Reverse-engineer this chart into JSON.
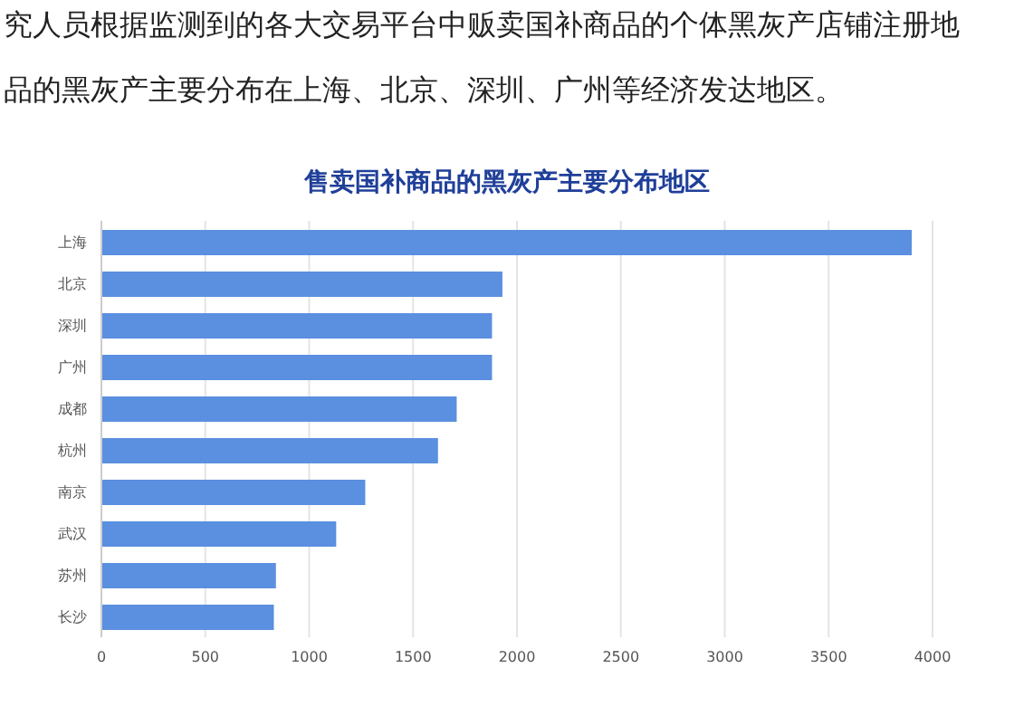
{
  "chart_data": {
    "type": "bar",
    "orientation": "horizontal",
    "title": "售卖国补商品的黑灰产主要分布地区",
    "annotations": [
      "究人员根据监测到的各大交易平台中贩卖国补商品的个体黑灰产店铺注册地",
      "品的黑灰产主要分布在上海、北京、深圳、广州等经济发达地区。"
    ],
    "categories": [
      "上海",
      "北京",
      "深圳",
      "广州",
      "成都",
      "杭州",
      "南京",
      "武汉",
      "苏州",
      "长沙"
    ],
    "values": [
      3900,
      1930,
      1880,
      1880,
      1710,
      1620,
      1270,
      1130,
      840,
      830
    ],
    "color": "#5b8fe0",
    "xlim": [
      0,
      4000
    ],
    "xticks": [
      0,
      500,
      1000,
      1500,
      2000,
      2500,
      3000,
      3500,
      4000
    ],
    "grid": "x"
  }
}
